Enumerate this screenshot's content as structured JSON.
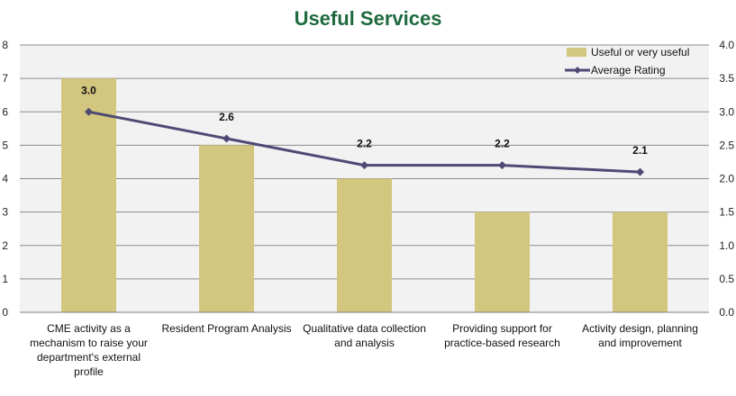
{
  "chart_data": {
    "type": "bar",
    "title": "Useful Services",
    "categories": [
      [
        "CME activity as a",
        "mechanism to raise your",
        "department's external",
        "profile"
      ],
      [
        "Resident Program Analysis"
      ],
      [
        "Qualitative data collection",
        "and analysis"
      ],
      [
        "Providing support for",
        "practice-based research"
      ],
      [
        "Activity design, planning",
        "and improvement"
      ]
    ],
    "series": [
      {
        "name": "Useful or very useful",
        "type": "bar",
        "axis": "left",
        "color": "#d3c67e",
        "values": [
          7,
          5,
          4,
          3,
          3
        ]
      },
      {
        "name": "Average Rating",
        "type": "line",
        "axis": "right",
        "color": "#4f4a74",
        "values": [
          3.0,
          2.6,
          2.2,
          2.2,
          2.1
        ],
        "labels": [
          "3.0",
          "2.6",
          "2.2",
          "2.2",
          "2.1"
        ]
      }
    ],
    "y_left": {
      "min": 0,
      "max": 8,
      "step": 1,
      "ticks": [
        "0",
        "1",
        "2",
        "3",
        "4",
        "5",
        "6",
        "7",
        "8"
      ]
    },
    "y_right": {
      "min": 0,
      "max": 4,
      "step": 0.5,
      "ticks": [
        "0.0",
        "0.5",
        "1.0",
        "1.5",
        "2.0",
        "2.5",
        "3.0",
        "3.5",
        "4.0"
      ]
    },
    "grid": true,
    "legend_position": "top-right",
    "plot_background": "#f2f2f2"
  }
}
